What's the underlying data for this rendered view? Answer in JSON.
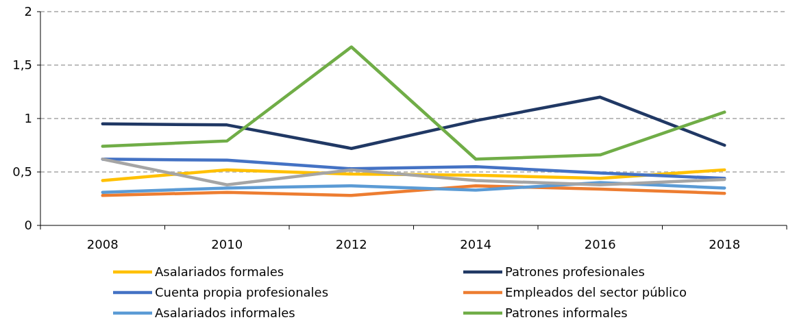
{
  "chart_data": {
    "type": "line",
    "categories": [
      "2008",
      "2010",
      "2012",
      "2014",
      "2016",
      "2018"
    ],
    "ylim": [
      0,
      2
    ],
    "yticks": [
      0,
      {
        "value": 0.5,
        "label": "0,5"
      },
      1,
      {
        "value": 1.5,
        "label": "1,5"
      },
      2
    ],
    "grid": "y",
    "legend": "bottom",
    "line_style": "solid",
    "marker": "none",
    "series": [
      {
        "name": "Asalariados formales",
        "color": "#ffc000",
        "values": [
          0.42,
          0.52,
          0.48,
          0.47,
          0.44,
          0.52
        ]
      },
      {
        "name": "Patrones profesionales",
        "color": "#203864",
        "values": [
          0.95,
          0.94,
          0.72,
          0.98,
          1.2,
          0.75
        ]
      },
      {
        "name": "Cuenta propia profesionales",
        "color": "#4472c4",
        "values": [
          0.62,
          0.61,
          0.53,
          0.55,
          0.49,
          0.44
        ]
      },
      {
        "name": "Empleados del sector público",
        "color": "#ed7d31",
        "values": [
          0.28,
          0.31,
          0.28,
          0.37,
          0.34,
          0.3
        ]
      },
      {
        "name": "Asalariados informales",
        "color": "#5b9bd5",
        "values": [
          0.31,
          0.35,
          0.37,
          0.33,
          0.4,
          0.35
        ]
      },
      {
        "name": "Patrones informales",
        "color": "#70ad47",
        "values": [
          0.74,
          0.79,
          1.67,
          0.62,
          0.66,
          1.06
        ]
      },
      {
        "color": "#a5a5a5",
        "values": [
          0.62,
          0.38,
          0.52,
          0.42,
          0.38,
          0.43
        ]
      }
    ]
  }
}
